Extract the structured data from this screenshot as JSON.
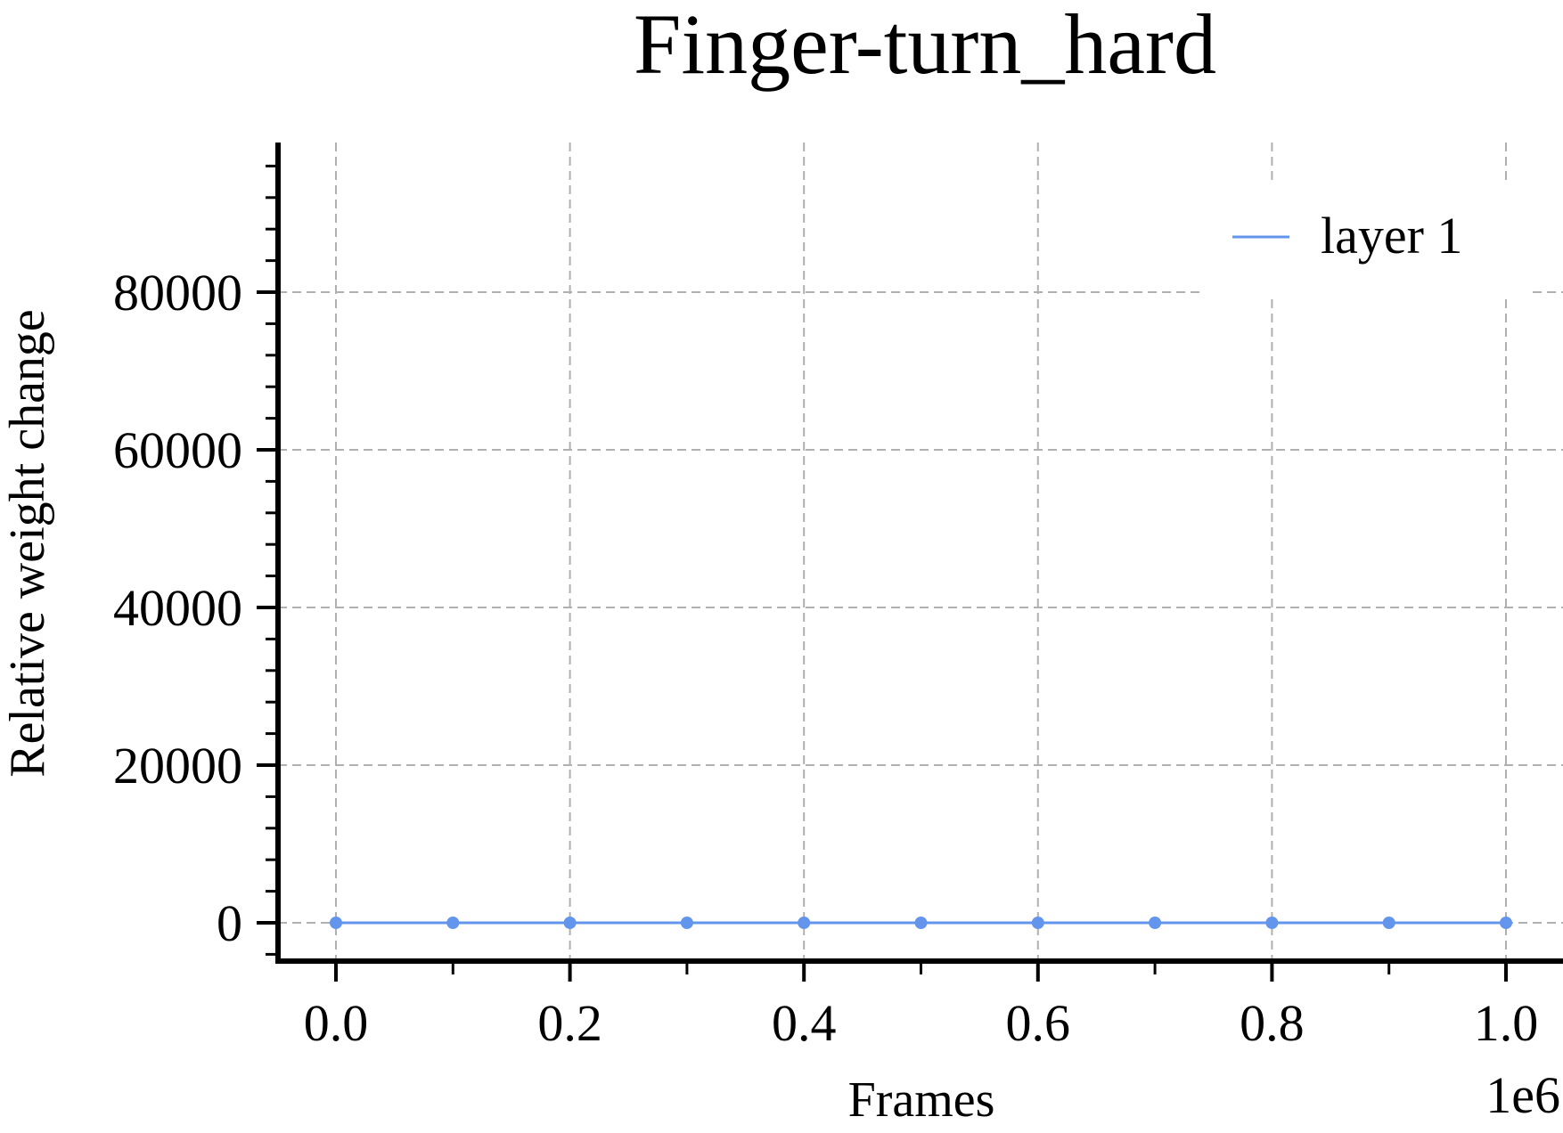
{
  "chart_data": {
    "type": "line",
    "title": "Finger-turn_hard",
    "xlabel": "Frames",
    "ylabel": "Relative weight change",
    "x_offset_label": "1e6",
    "x_scale": 1000000,
    "xlim": [
      -0.05,
      1.05
    ],
    "ylim": [
      -6000,
      98000
    ],
    "x_ticks": [
      0.0,
      0.2,
      0.4,
      0.6,
      0.8,
      1.0
    ],
    "x_tick_labels": [
      "0.0",
      "0.2",
      "0.4",
      "0.6",
      "0.8",
      "1.0"
    ],
    "y_ticks": [
      0,
      20000,
      40000,
      60000,
      80000
    ],
    "y_tick_labels": [
      "0",
      "20000",
      "40000",
      "60000",
      "80000"
    ],
    "grid": true,
    "legend_position": "top-right",
    "series": [
      {
        "name": "layer 1",
        "color": "#6495ed",
        "x": [
          0,
          100000,
          200000,
          300000,
          400000,
          500000,
          600000,
          700000,
          800000,
          900000,
          1000000
        ],
        "y": [
          0,
          0,
          0,
          0,
          0,
          0,
          0,
          0,
          0,
          0,
          0
        ]
      }
    ]
  }
}
